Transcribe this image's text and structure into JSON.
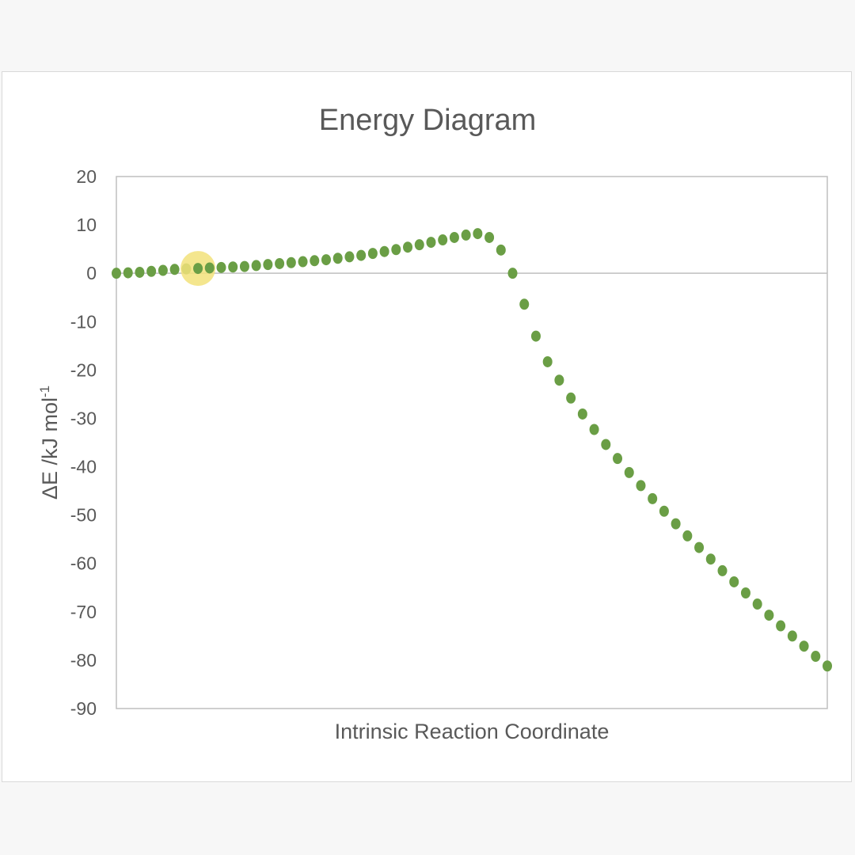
{
  "chart_data": {
    "type": "scatter",
    "title": "Energy Diagram",
    "xlabel": "Intrinsic Reaction Coordinate",
    "ylabel": {
      "text": "ΔE /kJ mol",
      "superscript": "-1"
    },
    "ylim": [
      -90,
      20
    ],
    "yticks": [
      20,
      10,
      0,
      -10,
      -20,
      -30,
      -40,
      -50,
      -60,
      -70,
      -80,
      -90
    ],
    "xlim": [
      0,
      61
    ],
    "x_axis_labels_shown": false,
    "grid": false,
    "zero_line": true,
    "legend": "none",
    "marker_color": "#6a9e45",
    "highlight_color": "#f2e27a",
    "highlighted_point_index": 7,
    "series": [
      {
        "x": [
          0,
          1,
          2,
          3,
          4,
          5,
          6,
          7,
          8,
          9,
          10,
          11,
          12,
          13,
          14,
          15,
          16,
          17,
          18,
          19,
          20,
          21,
          22,
          23,
          24,
          25,
          26,
          27,
          28,
          29,
          30,
          31,
          32,
          33,
          34,
          35,
          36,
          37,
          38,
          39,
          40,
          41,
          42,
          43,
          44,
          45,
          46,
          47,
          48,
          49,
          50,
          51,
          52,
          53,
          54,
          55,
          56,
          57,
          58,
          59,
          60,
          61
        ],
        "values": [
          0,
          0.1,
          0.2,
          0.4,
          0.6,
          0.8,
          0.9,
          1.0,
          1.1,
          1.2,
          1.3,
          1.4,
          1.6,
          1.8,
          2.0,
          2.2,
          2.4,
          2.6,
          2.8,
          3.1,
          3.4,
          3.7,
          4.1,
          4.5,
          4.9,
          5.4,
          5.9,
          6.4,
          6.9,
          7.4,
          7.9,
          8.2,
          7.4,
          4.8,
          0.0,
          -6.4,
          -13.0,
          -18.3,
          -22.1,
          -25.8,
          -29.1,
          -32.3,
          -35.4,
          -38.3,
          -41.2,
          -43.9,
          -46.6,
          -49.2,
          -51.8,
          -54.3,
          -56.7,
          -59.1,
          -61.5,
          -63.8,
          -66.1,
          -68.4,
          -70.7,
          -72.9,
          -75.0,
          -77.1,
          -79.2,
          -81.2
        ]
      }
    ]
  }
}
